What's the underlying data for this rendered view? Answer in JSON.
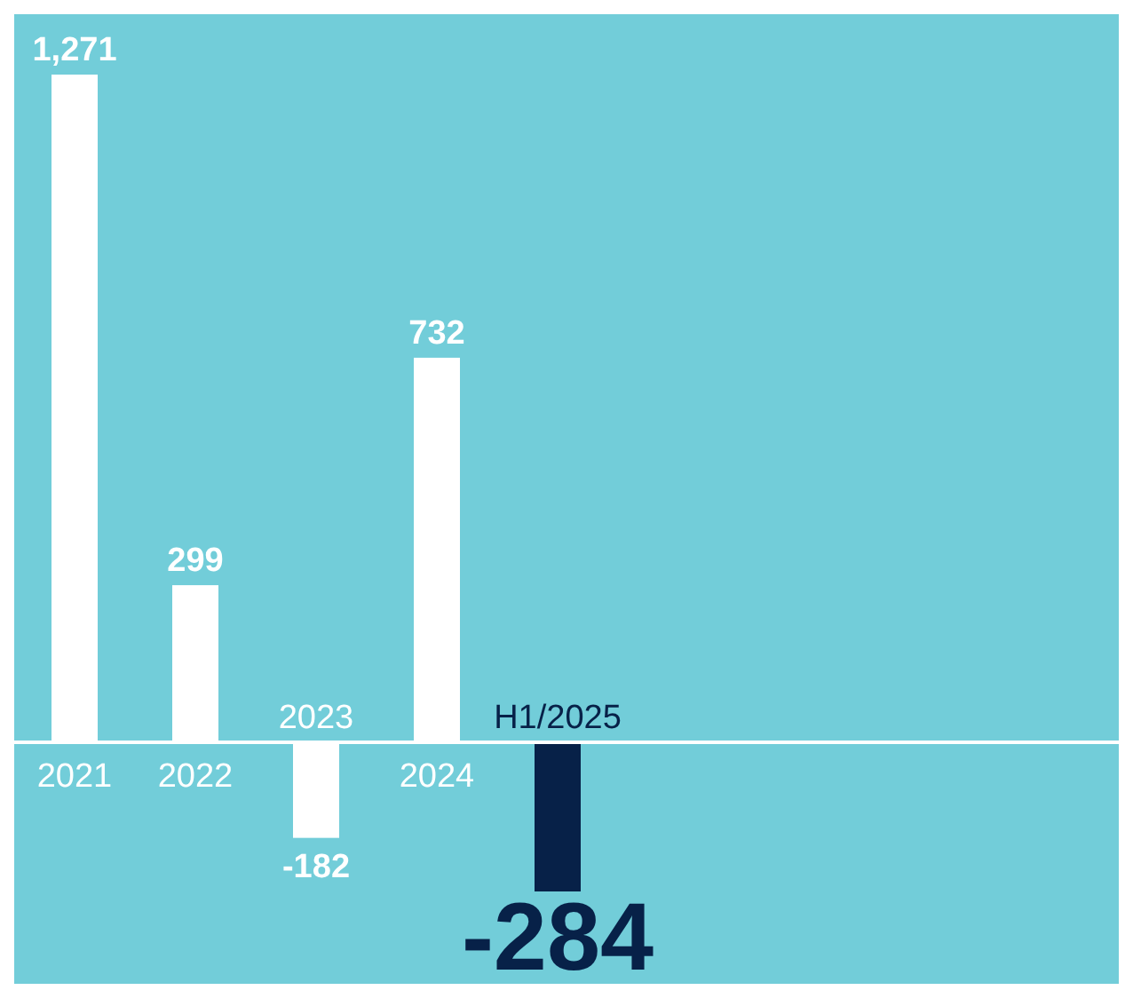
{
  "chart_data": {
    "type": "bar",
    "categories": [
      "2021",
      "2022",
      "2023",
      "2024",
      "H1/2025"
    ],
    "values": [
      1271,
      299,
      -182,
      732,
      -284
    ],
    "colors": [
      "#ffffff",
      "#ffffff",
      "#ffffff",
      "#ffffff",
      "#072148"
    ],
    "value_labels": [
      "1,271",
      "299",
      "-182",
      "732",
      "-284"
    ]
  }
}
